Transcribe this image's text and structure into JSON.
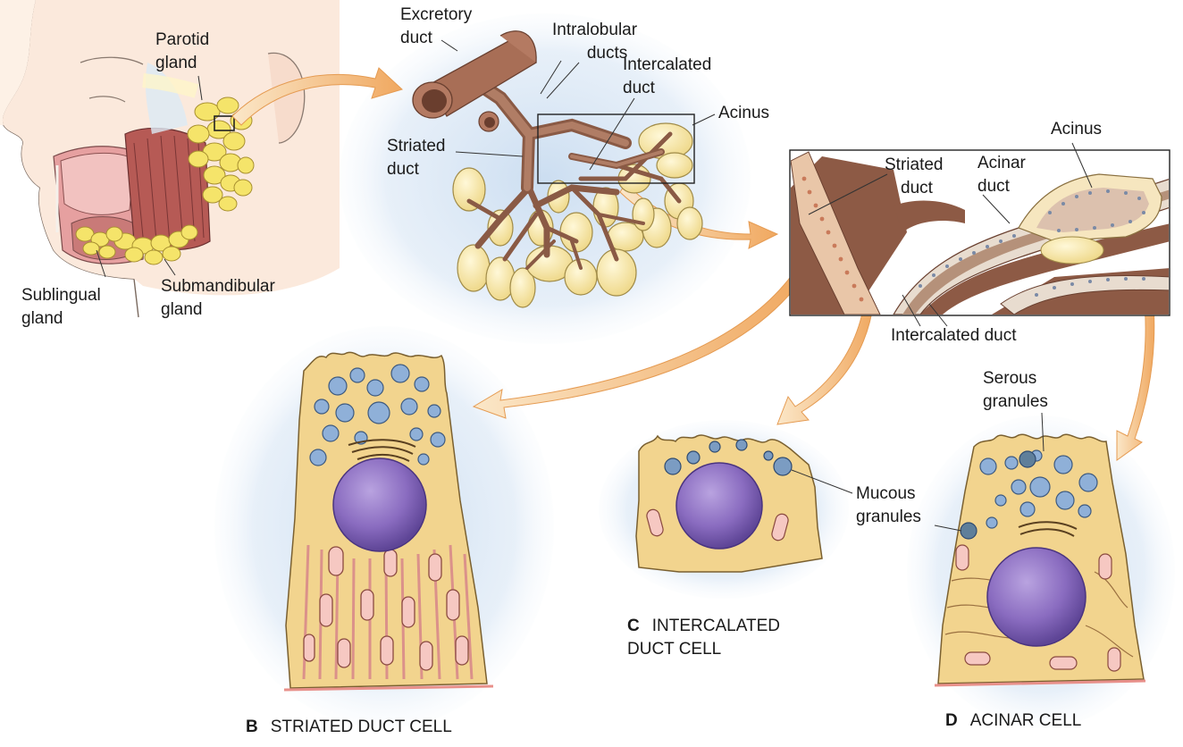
{
  "labels": {
    "parotid": [
      "Parotid",
      "gland"
    ],
    "sublingual": [
      "Sublingual",
      "gland"
    ],
    "submandibular": [
      "Submandibular",
      "gland"
    ],
    "excretory": [
      "Excretory",
      "duct"
    ],
    "intralobular": [
      "Intralobular",
      "ducts"
    ],
    "intercalated_top": [
      "Intercalated",
      "duct"
    ],
    "acinus_1": "Acinus",
    "striated_1": [
      "Striated",
      "duct"
    ],
    "striated_2": [
      "Striated",
      "duct"
    ],
    "acinar_duct": [
      "Acinar",
      "duct"
    ],
    "acinus_2": "Acinus",
    "intercalated_duct": "Intercalated duct",
    "serous": [
      "Serous",
      "granules"
    ],
    "mucous": [
      "Mucous",
      "granules"
    ]
  },
  "captions": {
    "b": {
      "letter": "B",
      "text": "STRIATED DUCT CELL"
    },
    "c": {
      "letter": "C",
      "line1": "INTERCALATED",
      "line2": "DUCT CELL"
    },
    "d": {
      "letter": "D",
      "text": "ACINAR CELL"
    }
  },
  "colors": {
    "duct": "#9b6b58",
    "acinus": "#f3e3a6",
    "cytoplasm": "#f0d48d",
    "nucleus": "#8d6fc0",
    "granule_serous": "#8fb0d8",
    "granule_mucous": "#5f7f9a",
    "arrow": "#f2b670",
    "halo": "#cfe0f2",
    "muscle": "#b85450",
    "gland": "#f5e46a"
  }
}
